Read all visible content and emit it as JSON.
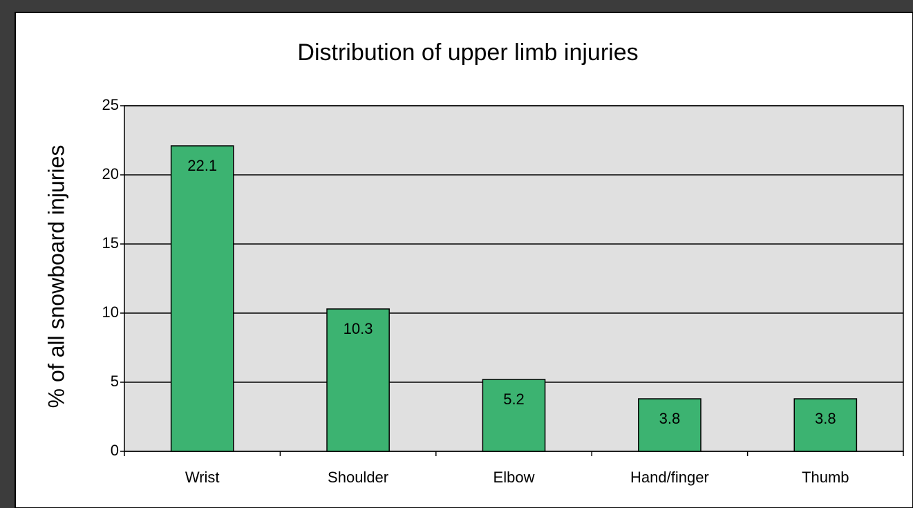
{
  "chart_data": {
    "type": "bar",
    "title": "Distribution of upper limb injuries",
    "y_label": "% of all snowboard injuries",
    "categories": [
      "Wrist",
      "Shoulder",
      "Elbow",
      "Hand/finger",
      "Thumb"
    ],
    "values": [
      22.1,
      10.3,
      5.2,
      3.8,
      3.8
    ],
    "color": "#3cb371",
    "ylim": [
      0,
      25
    ],
    "yticks": [
      0,
      5,
      10,
      15,
      20,
      25
    ],
    "grid": true
  }
}
